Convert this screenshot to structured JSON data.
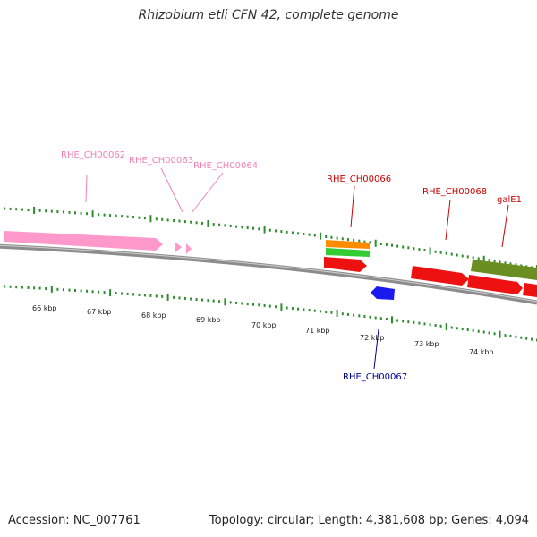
{
  "title": "Rhizobium etli CFN 42, complete genome",
  "footer": {
    "accession": "Accession: NC_007761",
    "summary": "Topology: circular; Length: 4,381,608 bp; Genes: 4,094"
  },
  "colors": {
    "tick": "#2e8b2e",
    "backbone": "#8c8c8c",
    "pink": "#ff99cc",
    "red": "#ee1111",
    "orange": "#ff8c00",
    "green": "#33cc33",
    "olive": "#6b8e23",
    "blue": "#1a1aee",
    "label_pink": "#ee82b4",
    "label_red": "#cc0000",
    "label_blue": "#00008b"
  },
  "scale_labels": [
    "66 kbp",
    "67 kbp",
    "68 kbp",
    "69 kbp",
    "70 kbp",
    "71 kbp",
    "72 kbp",
    "73 kbp",
    "74 kbp"
  ],
  "gene_labels": [
    {
      "name": "RHE_CH00062",
      "color": "label_pink"
    },
    {
      "name": "RHE_CH00063",
      "color": "label_pink"
    },
    {
      "name": "RHE_CH00064",
      "color": "label_pink"
    },
    {
      "name": "RHE_CH00066",
      "color": "label_red"
    },
    {
      "name": "RHE_CH00068",
      "color": "label_red"
    },
    {
      "name": "galE1",
      "color": "label_red"
    },
    {
      "name": "RHE_CH00067",
      "color": "label_blue"
    }
  ]
}
